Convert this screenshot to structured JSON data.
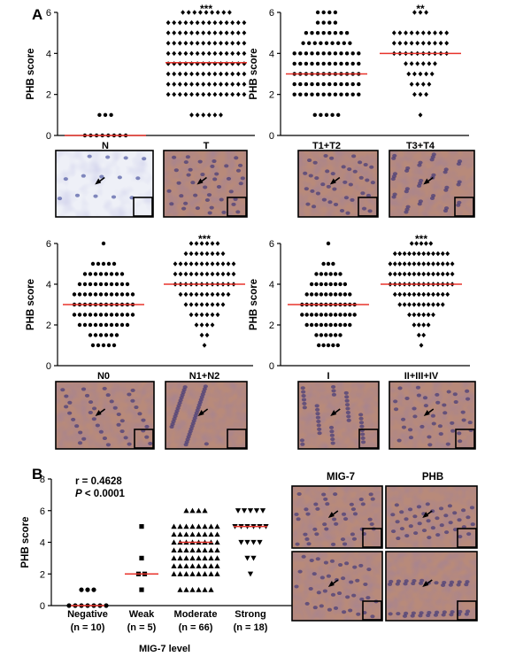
{
  "panel_labels": [
    "A",
    "B"
  ],
  "colors": {
    "median": "#e8332b",
    "ink": "#000000"
  },
  "chart_data": [
    {
      "type": "scatter",
      "name": "N vs T",
      "ylabel": "PHB score",
      "ylim": [
        0,
        6
      ],
      "yticks": [
        "0",
        "2",
        "4",
        "6"
      ],
      "significance": "***",
      "sig_group": 1,
      "categories": [
        "N",
        "T"
      ],
      "groups": [
        {
          "label": "N",
          "marker": "circle",
          "median": 0,
          "counts": {
            "0": 8,
            "1": 3
          }
        },
        {
          "label": "T",
          "marker": "diamond",
          "median": 3.55,
          "counts": {
            "1": 6,
            "2": 14,
            "2.5": 14,
            "3": 14,
            "3.5": 14,
            "4": 14,
            "4.5": 14,
            "5": 14,
            "5.5": 14,
            "6": 9
          }
        }
      ]
    },
    {
      "type": "scatter",
      "name": "T1+T2 vs T3+T4",
      "ylabel": "PHB score",
      "ylim": [
        0,
        6
      ],
      "yticks": [
        "0",
        "2",
        "4",
        "6"
      ],
      "significance": "**",
      "sig_group": 1,
      "categories": [
        "T1+T2",
        "T3+T4"
      ],
      "groups": [
        {
          "label": "T1+T2",
          "marker": "circle",
          "median": 3,
          "counts": {
            "1": 5,
            "2": 12,
            "2.5": 12,
            "3": 12,
            "3.5": 12,
            "4": 12,
            "4.5": 9,
            "5": 8,
            "5.5": 4,
            "6": 4
          }
        },
        {
          "label": "T3+T4",
          "marker": "diamond",
          "median": 4,
          "counts": {
            "1": 1,
            "2": 3,
            "2.5": 4,
            "3": 5,
            "3.5": 6,
            "4": 10,
            "4.5": 10,
            "5": 10,
            "6": 3
          }
        }
      ]
    },
    {
      "type": "scatter",
      "name": "N0 vs N1+N2",
      "ylabel": "PHB score",
      "ylim": [
        0,
        6
      ],
      "yticks": [
        "0",
        "2",
        "4",
        "6"
      ],
      "significance": "***",
      "sig_group": 1,
      "categories": [
        "N0",
        "N1+N2"
      ],
      "groups": [
        {
          "label": "N0",
          "marker": "circle",
          "median": 3,
          "counts": {
            "1": 5,
            "1.5": 6,
            "2": 10,
            "2.5": 12,
            "3": 12,
            "3.5": 12,
            "4": 10,
            "4.5": 8,
            "5": 5,
            "6": 1
          }
        },
        {
          "label": "N1+N2",
          "marker": "diamond",
          "median": 4,
          "counts": {
            "1": 1,
            "1.5": 2,
            "2": 4,
            "2.5": 6,
            "3": 8,
            "3.5": 10,
            "4": 12,
            "4.5": 12,
            "5": 12,
            "5.5": 8,
            "6": 6
          }
        }
      ]
    },
    {
      "type": "scatter",
      "name": "I vs II+III+IV",
      "ylabel": "PHB score",
      "ylim": [
        0,
        6
      ],
      "yticks": [
        "0",
        "2",
        "4",
        "6"
      ],
      "significance": "***",
      "sig_group": 1,
      "categories": [
        "I",
        "II+III+IV"
      ],
      "groups": [
        {
          "label": "I",
          "marker": "circle",
          "median": 3,
          "counts": {
            "1": 5,
            "1.5": 6,
            "2": 10,
            "2.5": 12,
            "3": 12,
            "3.5": 10,
            "4": 8,
            "4.5": 6,
            "5": 3,
            "6": 1
          }
        },
        {
          "label": "II+III+IV",
          "marker": "diamond",
          "median": 4,
          "counts": {
            "1": 1,
            "1.5": 2,
            "2": 4,
            "2.5": 6,
            "3": 10,
            "3.5": 12,
            "4": 14,
            "4.5": 14,
            "5": 14,
            "5.5": 12,
            "6": 5
          }
        }
      ]
    },
    {
      "type": "scatter",
      "name": "MIG-7 level",
      "ylabel": "PHB score",
      "xlabel": "MIG-7 level",
      "ylim": [
        0,
        8
      ],
      "yticks": [
        "0",
        "2",
        "4",
        "6",
        "8"
      ],
      "annotations": [
        "r = 0.4628",
        "P",
        " < 0.0001"
      ],
      "categories": [
        "Negative",
        "Weak",
        "Moderate",
        "Strong"
      ],
      "n_labels": [
        "(n = 10)",
        "(n = 5)",
        "(n = 66)",
        "(n = 18)"
      ],
      "groups": [
        {
          "label": "Negative",
          "marker": "circle",
          "median": 0,
          "counts": {
            "0": 7,
            "1": 3
          }
        },
        {
          "label": "Weak",
          "marker": "square",
          "median": 2,
          "counts": {
            "1": 1,
            "2": 2,
            "3": 1,
            "5": 1
          }
        },
        {
          "label": "Moderate",
          "marker": "triangle-up",
          "median": 4,
          "counts": {
            "1": 6,
            "2": 8,
            "2.5": 8,
            "3": 8,
            "3.5": 8,
            "4": 8,
            "4.5": 8,
            "5": 8,
            "6": 4
          }
        },
        {
          "label": "Strong",
          "marker": "triangle-down",
          "median": 5,
          "counts": {
            "2": 1,
            "3": 2,
            "4": 4,
            "5": 6,
            "6": 5
          }
        }
      ]
    }
  ],
  "micrographs": {
    "row1": [
      "N",
      "T",
      "T1+T2",
      "T3+T4"
    ],
    "row2": [
      "N0",
      "N1+N2",
      "I",
      "II+III+IV"
    ],
    "b_headers": [
      "MIG-7",
      "PHB"
    ]
  }
}
